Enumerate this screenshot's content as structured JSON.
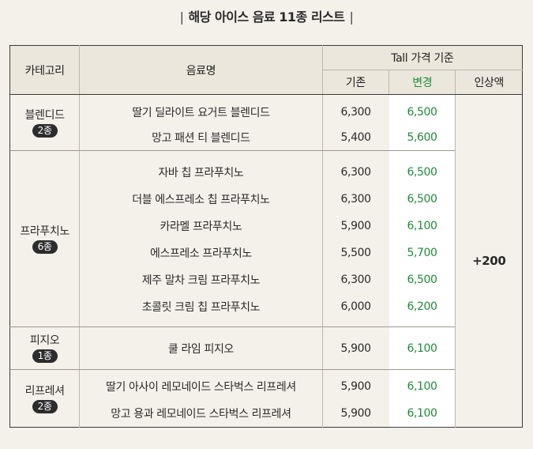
{
  "title": "해당 아이스 음료 11종 리스트",
  "title_bar": "|",
  "headers": {
    "category": "카테고리",
    "name": "음료명",
    "price_group": "Tall 가격 기준",
    "base": "기존",
    "new": "변경",
    "increase": "인상액"
  },
  "increase_value": "+200",
  "groups": [
    {
      "category": "블렌디드",
      "badge": "2종",
      "items": [
        {
          "name": "딸기 딜라이트 요거트 블렌디드",
          "base": "6,300",
          "new": "6,500"
        },
        {
          "name": "망고 패션 티 블렌디드",
          "base": "5,400",
          "new": "5,600"
        }
      ]
    },
    {
      "category": "프라푸치노",
      "badge": "6종",
      "items": [
        {
          "name": "자바 칩 프라푸치노",
          "base": "6,300",
          "new": "6,500"
        },
        {
          "name": "더블 에스프레소 칩 프라푸치노",
          "base": "6,300",
          "new": "6,500"
        },
        {
          "name": "카라멜 프라푸치노",
          "base": "5,900",
          "new": "6,100"
        },
        {
          "name": "에스프레소 프라푸치노",
          "base": "5,500",
          "new": "5,700"
        },
        {
          "name": "제주 말차 크림 프라푸치노",
          "base": "6,300",
          "new": "6,500"
        },
        {
          "name": "초콜릿 크림 칩 프라푸치노",
          "base": "6,000",
          "new": "6,200"
        }
      ]
    },
    {
      "category": "피지오",
      "badge": "1종",
      "items": [
        {
          "name": "쿨 라임 피지오",
          "base": "5,900",
          "new": "6,100"
        }
      ]
    },
    {
      "category": "리프레셔",
      "badge": "2종",
      "items": [
        {
          "name": "딸기 아사이 레모네이드 스타벅스 리프레셔",
          "base": "5,900",
          "new": "6,100"
        },
        {
          "name": "망고 용과 레모네이드 스타벅스 리프레셔",
          "base": "5,900",
          "new": "6,100"
        }
      ]
    }
  ]
}
